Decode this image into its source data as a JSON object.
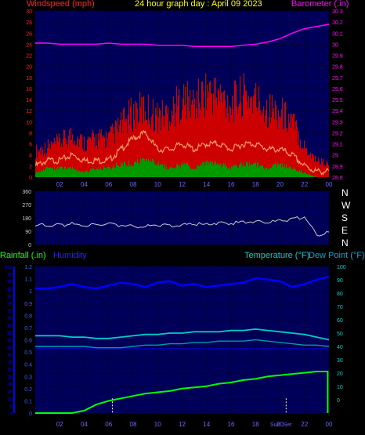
{
  "header": {
    "windspeed_label": "Windspeed (mph)",
    "title": "24 hour graph day : April 09 2023",
    "barometer_label": "Barometer (.in)"
  },
  "lower_header": {
    "rainfall_label": "Rainfall (.in)",
    "humidity_label": "Humidity",
    "temperature_label": "Temperature (°F)",
    "dewpoint_label": "Dew Point (°F)"
  },
  "compass": [
    "N",
    "W",
    "S",
    "E",
    "N"
  ],
  "colors": {
    "background": "#000000",
    "plot_bg": "#00005a",
    "grid": "#00003a",
    "windspeed_label": "#ff2020",
    "title": "#ffff00",
    "barometer": "#ff00ff",
    "gust": "#cc0000",
    "wind_avg": "#ff9966",
    "wind_green": "#009900",
    "direction": "#cccccc",
    "rainfall": "#00ff00",
    "humidity": "#0000ff",
    "temperature": "#00cccc",
    "dewpoint": "#0099aa",
    "marker": "#ffff99"
  },
  "chart_data": [
    {
      "type": "line",
      "title": "24 hour graph day : April 09 2023",
      "x_ticks": [
        "02",
        "04",
        "06",
        "08",
        "10",
        "12",
        "14",
        "16",
        "18",
        "20",
        "22",
        "00"
      ],
      "y_left_ticks": [
        "0",
        "2",
        "4",
        "6",
        "8",
        "10",
        "12",
        "14",
        "16",
        "18",
        "20",
        "22",
        "24",
        "26",
        "28",
        "30"
      ],
      "y_right_ticks": [
        "28.8",
        "28.9",
        "29",
        "29.1",
        "29.2",
        "29.3",
        "29.4",
        "29.5",
        "29.6",
        "29.7",
        "29.8",
        "29.9",
        "30",
        "30.1",
        "30.2",
        "30.3"
      ],
      "left_label": "Windspeed (mph)",
      "right_label": "Barometer (.in)",
      "ylim_left": [
        0,
        30
      ],
      "ylim_right": [
        28.8,
        30.3
      ],
      "hours": [
        0,
        1,
        2,
        3,
        4,
        5,
        6,
        7,
        8,
        9,
        10,
        11,
        12,
        13,
        14,
        15,
        16,
        17,
        18,
        19,
        20,
        21,
        22,
        23,
        24
      ],
      "series": [
        {
          "name": "Barometer",
          "axis": "right",
          "values": [
            30.01,
            30.01,
            30.0,
            30.0,
            30.0,
            30.0,
            30.01,
            30.0,
            30.0,
            30.0,
            29.99,
            29.99,
            29.99,
            29.98,
            29.98,
            29.98,
            29.98,
            29.99,
            30.0,
            30.02,
            30.05,
            30.1,
            30.14,
            30.16,
            30.18
          ]
        },
        {
          "name": "Gust",
          "axis": "left",
          "values": [
            6,
            7,
            8,
            10,
            8,
            9,
            9,
            12,
            15,
            16,
            14,
            15,
            18,
            17,
            20,
            19,
            17,
            19,
            18,
            16,
            15,
            13,
            7,
            4,
            3
          ]
        },
        {
          "name": "Average",
          "axis": "left",
          "values": [
            2,
            3,
            3,
            4,
            3,
            3,
            3,
            5,
            7,
            8,
            5,
            5,
            6,
            5,
            6,
            6,
            5,
            6,
            6,
            5,
            5,
            4,
            2,
            1,
            1
          ]
        },
        {
          "name": "Lull",
          "axis": "left",
          "values": [
            1,
            2,
            2,
            2,
            1,
            2,
            2,
            3,
            3,
            4,
            3,
            2,
            3,
            2,
            3,
            3,
            2,
            3,
            3,
            2,
            3,
            2,
            1,
            0,
            0
          ]
        }
      ]
    },
    {
      "type": "line",
      "y_ticks": [
        "360",
        "270",
        "180",
        "90",
        "0"
      ],
      "ylim": [
        0,
        360
      ],
      "hours": [
        0,
        1,
        2,
        3,
        4,
        5,
        6,
        7,
        8,
        9,
        10,
        11,
        12,
        13,
        14,
        15,
        16,
        17,
        18,
        19,
        20,
        21,
        22,
        23,
        24
      ],
      "series": [
        {
          "name": "Direction",
          "values": [
            125,
            135,
            130,
            140,
            125,
            135,
            140,
            130,
            125,
            120,
            135,
            125,
            130,
            140,
            135,
            150,
            145,
            150,
            155,
            150,
            160,
            170,
            190,
            60,
            80
          ]
        }
      ]
    },
    {
      "type": "line",
      "x_ticks": [
        "02",
        "04",
        "06",
        "08",
        "10",
        "12",
        "14",
        "16",
        "18",
        "20",
        "22",
        "00"
      ],
      "sun_labels": [
        "Sun",
        "Set"
      ],
      "y_left_outer_ticks": [
        "0",
        "5",
        "10",
        "15",
        "20",
        "25",
        "30",
        "35",
        "40",
        "45",
        "50",
        "55",
        "60",
        "65",
        "70",
        "75",
        "80",
        "85",
        "90",
        "95",
        "100"
      ],
      "y_left_inner_ticks": [
        "0",
        "0.1",
        "0.2",
        "0.3",
        "0.4",
        "0.5",
        "0.6",
        "0.7",
        "0.8",
        "0.9",
        "1",
        "1.1",
        "1.2"
      ],
      "y_right_ticks": [
        "0",
        "10",
        "20",
        "30",
        "40",
        "50",
        "60",
        "70",
        "80",
        "90",
        "100"
      ],
      "ylim_humidity": [
        0,
        100
      ],
      "ylim_rain": [
        0,
        1.2
      ],
      "ylim_temp": [
        -10,
        100
      ],
      "hours": [
        0,
        1,
        2,
        3,
        4,
        5,
        6,
        7,
        8,
        9,
        10,
        11,
        12,
        13,
        14,
        15,
        16,
        17,
        18,
        19,
        20,
        21,
        22,
        23,
        24
      ],
      "series": [
        {
          "name": "Humidity",
          "values": [
            85,
            85,
            86,
            88,
            86,
            85,
            87,
            89,
            88,
            86,
            89,
            90,
            87,
            88,
            86,
            87,
            88,
            89,
            92,
            91,
            90,
            86,
            88,
            91,
            93
          ]
        },
        {
          "name": "Rainfall",
          "values": [
            0,
            0,
            0,
            0,
            0.02,
            0.07,
            0.1,
            0.12,
            0.14,
            0.16,
            0.17,
            0.18,
            0.2,
            0.21,
            0.22,
            0.24,
            0.25,
            0.27,
            0.28,
            0.3,
            0.31,
            0.32,
            0.33,
            0.34,
            0
          ]
        },
        {
          "name": "Temperature",
          "values": [
            48,
            48,
            48,
            47,
            47,
            46,
            46,
            47,
            48,
            49,
            49,
            50,
            50,
            51,
            51,
            51,
            52,
            52,
            53,
            52,
            51,
            50,
            49,
            47,
            45
          ]
        },
        {
          "name": "Dew Point",
          "values": [
            40,
            40,
            40,
            40,
            40,
            39,
            39,
            39,
            40,
            41,
            41,
            42,
            42,
            43,
            43,
            44,
            44,
            44,
            45,
            44,
            43,
            42,
            41,
            41,
            40
          ]
        }
      ]
    }
  ]
}
